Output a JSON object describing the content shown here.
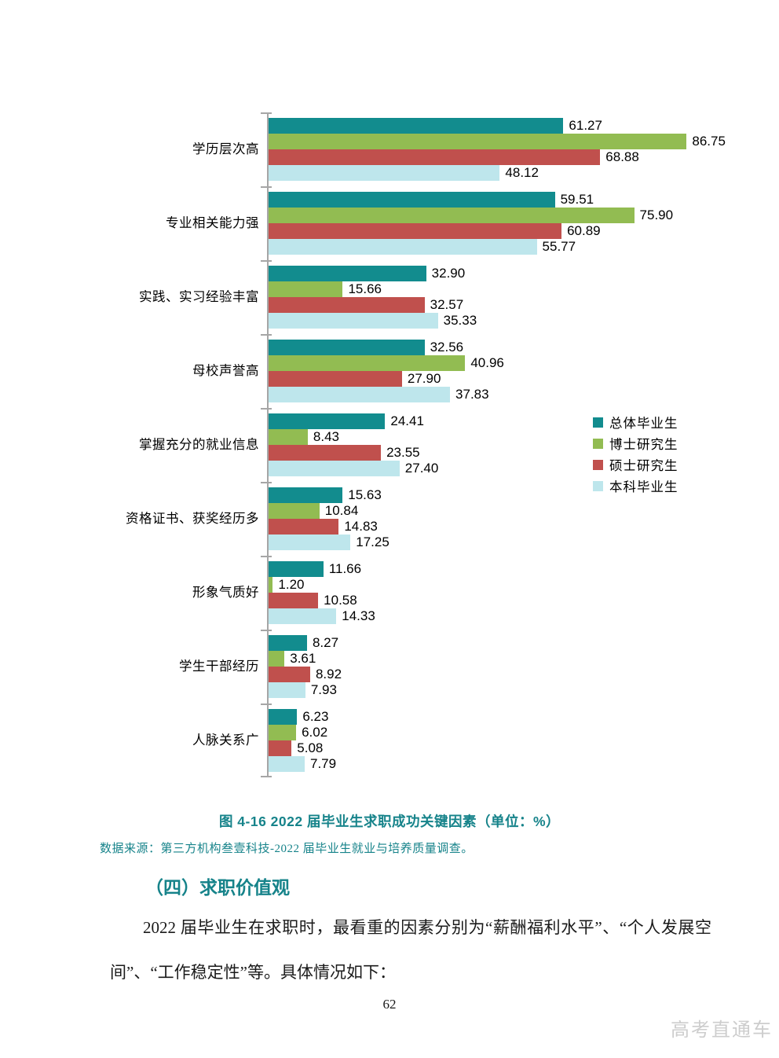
{
  "chart_data": {
    "type": "bar",
    "orientation": "horizontal",
    "unit": "%",
    "title": "2022届毕业生求职成功关键因素",
    "categories": [
      "学历层次高",
      "专业相关能力强",
      "实践、实习经验丰富",
      "母校声誉高",
      "掌握充分的就业信息",
      "资格证书、获奖经历多",
      "形象气质好",
      "学生干部经历",
      "人脉关系广"
    ],
    "series": [
      {
        "name": "总体毕业生",
        "color": "#128c8e",
        "values": [
          61.27,
          59.51,
          32.9,
          32.56,
          24.41,
          15.63,
          11.66,
          8.27,
          6.23
        ]
      },
      {
        "name": "博士研究生",
        "color": "#92bc52",
        "values": [
          86.75,
          75.9,
          15.66,
          40.96,
          8.43,
          10.84,
          1.2,
          3.61,
          6.02
        ]
      },
      {
        "name": "硕士研究生",
        "color": "#c0504d",
        "values": [
          68.88,
          60.89,
          32.57,
          27.9,
          23.55,
          14.83,
          10.58,
          8.92,
          5.08
        ]
      },
      {
        "name": "本科毕业生",
        "color": "#bee6ec",
        "values": [
          48.12,
          55.77,
          35.33,
          37.83,
          27.4,
          17.25,
          14.33,
          7.93,
          7.79
        ]
      }
    ],
    "xlim": [
      0,
      90
    ],
    "value_labels": true,
    "value_label_format": "0.00",
    "grid": false,
    "legend_position": "right-middle",
    "axis_color": "#a6a6a6"
  },
  "caption": {
    "text": "图  4-16  2022 届毕业生求职成功关键因素（单位：%）"
  },
  "source_note": {
    "text": "数据来源：第三方机构叁壹科技-2022 届毕业生就业与培养质量调查。"
  },
  "section": {
    "heading": "（四）求职价值观"
  },
  "paragraph": {
    "text": "2022 届毕业生在求职时，最看重的因素分别为“薪酬福利水平”、“个人发展空间”、“工作稳定性”等。具体情况如下："
  },
  "footer": {
    "page_number": "62"
  },
  "watermark": {
    "text": "高考直通车"
  },
  "colors": {
    "accent_teal": "#16838a",
    "body_text": "#1a1a1a",
    "axis": "#a6a6a6",
    "watermark": "#cdcdcd"
  }
}
